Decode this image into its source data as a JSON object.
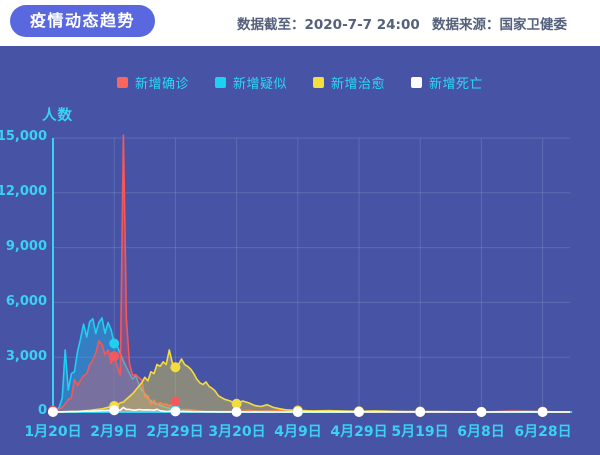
{
  "header": {
    "title": "疫情动态趋势",
    "data_as_of_label": "数据截至：",
    "data_as_of_value": "2020-7-7 24:00",
    "source_label": "数据来源：",
    "source_value": "国家卫健委"
  },
  "chart": {
    "y_axis_title": "人数",
    "y_ticks": [
      "0",
      "3,000",
      "6,000",
      "9,000",
      "12,000",
      "15,000"
    ],
    "x_ticks": [
      "1月20日",
      "2月9日",
      "2月29日",
      "3月20日",
      "4月9日",
      "4月29日",
      "5月19日",
      "6月8日",
      "6月28日"
    ],
    "legend": [
      {
        "label": "新增确诊",
        "color": "#fa665c"
      },
      {
        "label": "新增疑似",
        "color": "#1cd1f2"
      },
      {
        "label": "新增治愈",
        "color": "#f5df3d"
      },
      {
        "label": "新增死亡",
        "color": "#ffffff"
      }
    ]
  },
  "colors": {
    "chart_background": "#4754a6",
    "badge_background": "#5968de",
    "axis": "#3bd1f2",
    "tick_text": "#3bd1f2",
    "legend_text": "#2bd8f8",
    "header_text": "#55607c",
    "gridline": "rgba(255,255,255,0.13)"
  },
  "chart_data": {
    "type": "area",
    "title": "疫情动态趋势",
    "ylabel": "人数",
    "ylim": [
      0,
      15000
    ],
    "grid_y_values": [
      3000,
      6000,
      9000,
      12000,
      15000
    ],
    "x_unit": "days since 2020-01-20",
    "x_tick_days": [
      0,
      20,
      40,
      60,
      80,
      100,
      120,
      140,
      160
    ],
    "x_tick_labels": [
      "1月20日",
      "2月9日",
      "2月29日",
      "3月20日",
      "4月9日",
      "4月29日",
      "5月19日",
      "6月8日",
      "6月28日"
    ],
    "legend_position": "top",
    "series": [
      {
        "name": "新增确诊",
        "color": "#f4575c",
        "fill": "rgba(244,87,92,0.35)",
        "z": 1,
        "points": [
          [
            0,
            77
          ],
          [
            1,
            149
          ],
          [
            2,
            131
          ],
          [
            3,
            259
          ],
          [
            4,
            444
          ],
          [
            5,
            688
          ],
          [
            6,
            769
          ],
          [
            7,
            1771
          ],
          [
            8,
            1459
          ],
          [
            9,
            1737
          ],
          [
            10,
            1982
          ],
          [
            11,
            2102
          ],
          [
            12,
            2590
          ],
          [
            13,
            2829
          ],
          [
            14,
            3235
          ],
          [
            15,
            3887
          ],
          [
            16,
            3694
          ],
          [
            17,
            3143
          ],
          [
            18,
            3399
          ],
          [
            19,
            2656
          ],
          [
            20,
            3062
          ],
          [
            21,
            2478
          ],
          [
            22,
            2015
          ],
          [
            23,
            15152
          ],
          [
            24,
            5090
          ],
          [
            25,
            2641
          ],
          [
            26,
            2009
          ],
          [
            27,
            2048
          ],
          [
            28,
            1886
          ],
          [
            29,
            1749
          ],
          [
            30,
            820
          ],
          [
            31,
            889
          ],
          [
            32,
            397
          ],
          [
            33,
            648
          ],
          [
            34,
            409
          ],
          [
            35,
            508
          ],
          [
            36,
            406
          ],
          [
            37,
            433
          ],
          [
            38,
            327
          ],
          [
            39,
            427
          ],
          [
            40,
            573
          ],
          [
            41,
            202
          ],
          [
            42,
            125
          ],
          [
            44,
            139
          ],
          [
            46,
            99
          ],
          [
            48,
            44
          ],
          [
            50,
            19
          ],
          [
            52,
            24
          ],
          [
            54,
            13
          ],
          [
            56,
            21
          ],
          [
            58,
            34
          ],
          [
            60,
            39
          ],
          [
            62,
            46
          ],
          [
            64,
            78
          ],
          [
            66,
            47
          ],
          [
            68,
            54
          ],
          [
            70,
            55
          ],
          [
            72,
            63
          ],
          [
            74,
            86
          ],
          [
            76,
            89
          ],
          [
            78,
            108
          ],
          [
            80,
            62
          ],
          [
            82,
            89
          ],
          [
            84,
            46
          ],
          [
            86,
            27
          ],
          [
            88,
            30
          ],
          [
            90,
            82
          ],
          [
            93,
            57
          ],
          [
            96,
            12
          ],
          [
            100,
            12
          ],
          [
            104,
            6
          ],
          [
            108,
            1
          ],
          [
            112,
            7
          ],
          [
            116,
            5
          ],
          [
            120,
            1
          ],
          [
            124,
            11
          ],
          [
            128,
            3
          ],
          [
            132,
            8
          ],
          [
            136,
            6
          ],
          [
            140,
            3
          ],
          [
            144,
            18
          ],
          [
            147,
            32
          ],
          [
            150,
            49
          ],
          [
            153,
            39
          ],
          [
            156,
            25
          ],
          [
            160,
            19
          ],
          [
            164,
            12
          ],
          [
            167,
            5
          ],
          [
            169,
            4
          ]
        ]
      },
      {
        "name": "新增疑似",
        "color": "#1fd0f2",
        "fill": "rgba(31,190,240,0.40)",
        "z": 0,
        "points": [
          [
            0,
            54
          ],
          [
            1,
            37
          ],
          [
            2,
            260
          ],
          [
            3,
            750
          ],
          [
            4,
            3400
          ],
          [
            5,
            1200
          ],
          [
            6,
            2100
          ],
          [
            7,
            2200
          ],
          [
            8,
            3300
          ],
          [
            9,
            4000
          ],
          [
            10,
            4812
          ],
          [
            11,
            4100
          ],
          [
            12,
            4950
          ],
          [
            13,
            5100
          ],
          [
            14,
            4300
          ],
          [
            15,
            4900
          ],
          [
            16,
            5150
          ],
          [
            17,
            4300
          ],
          [
            18,
            4900
          ],
          [
            19,
            4500
          ],
          [
            20,
            3750
          ],
          [
            21,
            3600
          ],
          [
            22,
            3200
          ],
          [
            23,
            2800
          ],
          [
            24,
            2450
          ],
          [
            25,
            2100
          ],
          [
            26,
            1800
          ],
          [
            27,
            2000
          ],
          [
            28,
            1550
          ],
          [
            29,
            1200
          ],
          [
            30,
            1000
          ],
          [
            31,
            750
          ],
          [
            32,
            600
          ],
          [
            33,
            480
          ],
          [
            34,
            420
          ],
          [
            35,
            370
          ],
          [
            36,
            300
          ],
          [
            37,
            250
          ],
          [
            38,
            200
          ],
          [
            39,
            170
          ],
          [
            40,
            130
          ],
          [
            42,
            100
          ],
          [
            44,
            80
          ],
          [
            46,
            60
          ],
          [
            48,
            45
          ],
          [
            50,
            35
          ],
          [
            55,
            25
          ],
          [
            60,
            20
          ],
          [
            65,
            15
          ],
          [
            70,
            12
          ],
          [
            75,
            10
          ],
          [
            80,
            8
          ],
          [
            85,
            6
          ],
          [
            90,
            5
          ],
          [
            95,
            4
          ],
          [
            100,
            3
          ],
          [
            110,
            2
          ],
          [
            120,
            2
          ],
          [
            130,
            1
          ],
          [
            140,
            1
          ],
          [
            150,
            1
          ],
          [
            160,
            1
          ],
          [
            169,
            1
          ]
        ]
      },
      {
        "name": "新增治愈",
        "color": "#f2dc3f",
        "fill": "rgba(242,220,63,0.38)",
        "z": 2,
        "points": [
          [
            0,
            0
          ],
          [
            2,
            6
          ],
          [
            4,
            10
          ],
          [
            6,
            20
          ],
          [
            8,
            30
          ],
          [
            10,
            60
          ],
          [
            12,
            90
          ],
          [
            14,
            130
          ],
          [
            16,
            170
          ],
          [
            18,
            260
          ],
          [
            20,
            330
          ],
          [
            21,
            400
          ],
          [
            22,
            500
          ],
          [
            23,
            550
          ],
          [
            24,
            700
          ],
          [
            25,
            850
          ],
          [
            26,
            1000
          ],
          [
            27,
            1200
          ],
          [
            28,
            1400
          ],
          [
            29,
            1600
          ],
          [
            30,
            1900
          ],
          [
            31,
            1700
          ],
          [
            32,
            2200
          ],
          [
            33,
            2100
          ],
          [
            34,
            2600
          ],
          [
            35,
            2500
          ],
          [
            36,
            2750
          ],
          [
            37,
            2600
          ],
          [
            38,
            3400
          ],
          [
            39,
            2700
          ],
          [
            40,
            2450
          ],
          [
            41,
            2600
          ],
          [
            42,
            2900
          ],
          [
            43,
            2600
          ],
          [
            44,
            2500
          ],
          [
            45,
            2350
          ],
          [
            46,
            2100
          ],
          [
            47,
            1800
          ],
          [
            48,
            1600
          ],
          [
            49,
            1500
          ],
          [
            50,
            1650
          ],
          [
            51,
            1400
          ],
          [
            52,
            1300
          ],
          [
            53,
            1150
          ],
          [
            54,
            900
          ],
          [
            55,
            800
          ],
          [
            56,
            700
          ],
          [
            57,
            650
          ],
          [
            58,
            600
          ],
          [
            59,
            500
          ],
          [
            60,
            450
          ],
          [
            62,
            600
          ],
          [
            64,
            500
          ],
          [
            66,
            350
          ],
          [
            68,
            300
          ],
          [
            70,
            400
          ],
          [
            72,
            250
          ],
          [
            74,
            180
          ],
          [
            76,
            120
          ],
          [
            78,
            100
          ],
          [
            80,
            80
          ],
          [
            85,
            60
          ],
          [
            90,
            70
          ],
          [
            95,
            50
          ],
          [
            100,
            40
          ],
          [
            105,
            60
          ],
          [
            110,
            40
          ],
          [
            115,
            30
          ],
          [
            120,
            25
          ],
          [
            125,
            20
          ],
          [
            130,
            15
          ],
          [
            135,
            10
          ],
          [
            140,
            8
          ],
          [
            145,
            10
          ],
          [
            150,
            15
          ],
          [
            155,
            20
          ],
          [
            160,
            15
          ],
          [
            165,
            8
          ],
          [
            169,
            5
          ]
        ]
      },
      {
        "name": "新增死亡",
        "color": "#ffffff",
        "fill": "rgba(255,255,255,0.12)",
        "z": 3,
        "points": [
          [
            0,
            6
          ],
          [
            2,
            8
          ],
          [
            4,
            16
          ],
          [
            6,
            24
          ],
          [
            8,
            26
          ],
          [
            10,
            43
          ],
          [
            12,
            46
          ],
          [
            14,
            57
          ],
          [
            16,
            73
          ],
          [
            18,
            86
          ],
          [
            20,
            97
          ],
          [
            21,
            108
          ],
          [
            22,
            97
          ],
          [
            23,
            254
          ],
          [
            24,
            143
          ],
          [
            25,
            142
          ],
          [
            26,
            105
          ],
          [
            27,
            98
          ],
          [
            28,
            136
          ],
          [
            29,
            122
          ],
          [
            30,
            114
          ],
          [
            31,
            118
          ],
          [
            32,
            109
          ],
          [
            33,
            97
          ],
          [
            34,
            150
          ],
          [
            35,
            71
          ],
          [
            36,
            52
          ],
          [
            37,
            29
          ],
          [
            38,
            44
          ],
          [
            39,
            47
          ],
          [
            40,
            35
          ],
          [
            42,
            31
          ],
          [
            44,
            23
          ],
          [
            46,
            17
          ],
          [
            48,
            14
          ],
          [
            50,
            13
          ],
          [
            52,
            11
          ],
          [
            54,
            7
          ],
          [
            56,
            6
          ],
          [
            58,
            3
          ],
          [
            60,
            6
          ],
          [
            62,
            3
          ],
          [
            64,
            5
          ],
          [
            66,
            4
          ],
          [
            68,
            3
          ],
          [
            70,
            1
          ],
          [
            75,
            1
          ],
          [
            80,
            2
          ],
          [
            85,
            1
          ],
          [
            90,
            0
          ],
          [
            95,
            3
          ],
          [
            100,
            0
          ],
          [
            110,
            0
          ],
          [
            120,
            0
          ],
          [
            130,
            0
          ],
          [
            140,
            0
          ],
          [
            150,
            0
          ],
          [
            160,
            0
          ],
          [
            169,
            0
          ]
        ]
      }
    ]
  }
}
